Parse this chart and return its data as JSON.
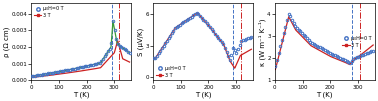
{
  "fig_width": 3.78,
  "fig_height": 1.01,
  "dpi": 100,
  "bg_color": "#ffffff",
  "panel1": {
    "xlabel": "T (K)",
    "ylabel": "ρ (Ω cm)",
    "xlim": [
      0,
      360
    ],
    "ylim": [
      0,
      0.0046
    ],
    "yticks": [
      0.0,
      0.001,
      0.002,
      0.003,
      0.004
    ],
    "xticks": [
      0,
      100,
      200,
      300
    ],
    "vline_blue": 290,
    "vline_red": 318,
    "legend": [
      "μ₀H=0 T",
      "3 T"
    ]
  },
  "panel2": {
    "xlabel": "T (K)",
    "ylabel": "S (μV/K)",
    "xlim": [
      0,
      360
    ],
    "ylim": [
      -0.3,
      7
    ],
    "yticks": [
      0,
      3,
      6
    ],
    "xticks": [
      0,
      100,
      200,
      300
    ],
    "vline_blue": 288,
    "vline_red": 318,
    "legend": [
      "μ₀H=0 T",
      "3 T"
    ]
  },
  "panel3": {
    "xlabel": "T (K)",
    "ylabel": "κ (W m⁻¹ K⁻¹)",
    "xlim": [
      0,
      360
    ],
    "ylim": [
      1.0,
      4.5
    ],
    "yticks": [
      1,
      2,
      3,
      4
    ],
    "xticks": [
      0,
      100,
      200,
      300
    ],
    "vline_blue": 280,
    "vline_red": 308,
    "legend": [
      "μ₀H=0 T",
      "3 T"
    ]
  },
  "color_blue": "#4472c4",
  "color_red": "#cc2222",
  "color_green": "#3a9a3a"
}
